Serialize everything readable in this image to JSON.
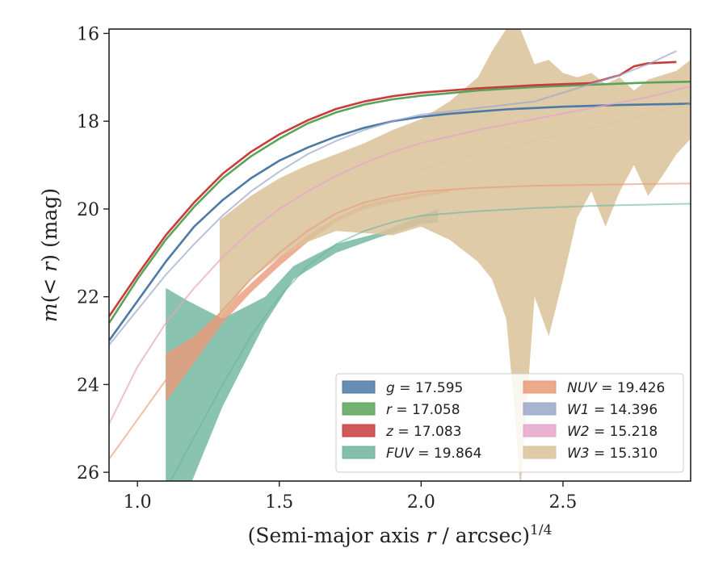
{
  "chart_data": {
    "type": "line",
    "xlabel": "(Semi-major axis r / arcsec)^1/4",
    "ylabel": "m(< r) (mag)",
    "xlim": [
      0.9,
      2.95
    ],
    "ylim": [
      26.2,
      15.9
    ],
    "y_inverted": true,
    "x_ticks": [
      1.0,
      1.5,
      2.0,
      2.5
    ],
    "x_tick_labels": [
      "1.0",
      "1.5",
      "2.0",
      "2.5"
    ],
    "y_ticks": [
      16,
      18,
      20,
      22,
      24,
      26
    ],
    "y_tick_labels": [
      "16",
      "18",
      "20",
      "22",
      "24",
      "26"
    ],
    "grid": false,
    "legend_position": "lower-right",
    "series": [
      {
        "name": "g",
        "legend_value": "17.595",
        "color": "#4c79a6",
        "x": [
          0.9,
          1.0,
          1.1,
          1.2,
          1.3,
          1.4,
          1.5,
          1.6,
          1.7,
          1.8,
          1.9,
          2.0,
          2.1,
          2.2,
          2.3,
          2.5,
          2.7,
          2.95
        ],
        "y": [
          23.0,
          22.1,
          21.2,
          20.4,
          19.8,
          19.3,
          18.9,
          18.6,
          18.35,
          18.15,
          18.0,
          17.9,
          17.83,
          17.78,
          17.73,
          17.67,
          17.63,
          17.6
        ]
      },
      {
        "name": "r",
        "legend_value": "17.058",
        "color": "#5aa35a",
        "x": [
          0.9,
          1.0,
          1.1,
          1.2,
          1.3,
          1.4,
          1.5,
          1.6,
          1.7,
          1.8,
          1.9,
          2.0,
          2.1,
          2.2,
          2.4,
          2.6,
          2.8,
          2.95
        ],
        "y": [
          22.6,
          21.6,
          20.7,
          19.95,
          19.3,
          18.8,
          18.4,
          18.05,
          17.8,
          17.62,
          17.5,
          17.42,
          17.36,
          17.3,
          17.22,
          17.17,
          17.12,
          17.1
        ]
      },
      {
        "name": "z",
        "legend_value": "17.083",
        "color": "#c93c3c",
        "x": [
          0.9,
          1.0,
          1.1,
          1.2,
          1.3,
          1.4,
          1.5,
          1.6,
          1.7,
          1.8,
          1.9,
          2.0,
          2.2,
          2.4,
          2.6,
          2.7,
          2.75,
          2.8,
          2.9
        ],
        "y": [
          22.45,
          21.5,
          20.6,
          19.85,
          19.2,
          18.7,
          18.3,
          17.98,
          17.72,
          17.55,
          17.43,
          17.35,
          17.25,
          17.18,
          17.13,
          16.95,
          16.75,
          16.68,
          16.65
        ]
      },
      {
        "name": "FUV",
        "legend_value": "19.864",
        "color": "#6db59c",
        "x": [
          1.1,
          1.2,
          1.3,
          1.4,
          1.5,
          1.6,
          1.7,
          1.8,
          1.9,
          2.0,
          2.2,
          2.4,
          2.6,
          2.8,
          2.95
        ],
        "y": [
          26.4,
          25.2,
          24.0,
          22.9,
          22.0,
          21.3,
          20.8,
          20.5,
          20.3,
          20.15,
          20.05,
          19.98,
          19.93,
          19.9,
          19.88
        ],
        "band_x": [
          1.1,
          1.18,
          1.3,
          1.45,
          1.55,
          1.7,
          1.85,
          2.0,
          2.06
        ],
        "band_upper": [
          21.8,
          22.1,
          22.5,
          22.0,
          21.3,
          20.8,
          20.55,
          20.15,
          20.0
        ],
        "band_lower": [
          26.4,
          26.4,
          24.5,
          22.6,
          21.6,
          21.0,
          20.65,
          20.35,
          20.3
        ]
      },
      {
        "name": "NUV",
        "legend_value": "19.426",
        "color": "#ea9a78",
        "x": [
          0.9,
          1.0,
          1.1,
          1.2,
          1.3,
          1.4,
          1.5,
          1.6,
          1.7,
          1.8,
          1.9,
          2.0,
          2.2,
          2.4,
          2.6,
          2.8,
          2.95
        ],
        "y": [
          25.7,
          24.8,
          23.9,
          23.1,
          22.3,
          21.6,
          21.0,
          20.5,
          20.1,
          19.85,
          19.7,
          19.6,
          19.52,
          19.47,
          19.45,
          19.43,
          19.42
        ],
        "band_x": [
          1.1,
          1.2,
          1.3,
          1.4,
          1.5,
          1.6,
          1.7,
          1.8,
          1.9,
          2.0,
          2.1
        ],
        "band_upper": [
          23.3,
          22.9,
          22.3,
          21.7,
          21.1,
          20.6,
          20.2,
          19.9,
          19.75,
          19.65,
          19.55
        ],
        "band_lower": [
          24.4,
          23.5,
          22.6,
          21.9,
          21.3,
          20.75,
          20.3,
          20.0,
          19.85,
          19.72,
          19.62
        ]
      },
      {
        "name": "W1",
        "legend_value": "14.396",
        "color": "#9aa7c9",
        "x": [
          0.9,
          1.0,
          1.1,
          1.2,
          1.3,
          1.4,
          1.5,
          1.6,
          1.7,
          1.8,
          1.9,
          2.0,
          2.2,
          2.4,
          2.5,
          2.6,
          2.7,
          2.8,
          2.9
        ],
        "y": [
          23.1,
          22.3,
          21.5,
          20.8,
          20.15,
          19.6,
          19.15,
          18.75,
          18.45,
          18.2,
          18.0,
          17.85,
          17.7,
          17.55,
          17.35,
          17.15,
          16.95,
          16.7,
          16.4
        ]
      },
      {
        "name": "W2",
        "legend_value": "15.218",
        "color": "#e5a3ca",
        "x": [
          0.9,
          1.0,
          1.1,
          1.2,
          1.3,
          1.4,
          1.5,
          1.6,
          1.7,
          1.8,
          1.9,
          2.0,
          2.2,
          2.4,
          2.6,
          2.8,
          2.95
        ],
        "y": [
          24.9,
          23.6,
          22.6,
          21.8,
          21.1,
          20.5,
          20.0,
          19.6,
          19.25,
          18.95,
          18.7,
          18.5,
          18.2,
          17.95,
          17.7,
          17.45,
          17.2
        ]
      },
      {
        "name": "W3",
        "legend_value": "15.310",
        "color": "#dbc29a",
        "x": [
          1.3,
          1.5,
          1.7,
          1.9,
          2.1,
          2.3,
          2.5,
          2.7,
          2.95
        ],
        "y": [
          21.4,
          20.4,
          19.8,
          19.3,
          18.9,
          18.6,
          18.3,
          18.0,
          17.6
        ],
        "band_x": [
          1.29,
          1.4,
          1.5,
          1.6,
          1.7,
          1.8,
          1.9,
          2.0,
          2.1,
          2.2,
          2.25,
          2.3,
          2.33,
          2.35,
          2.4,
          2.45,
          2.5,
          2.55,
          2.6,
          2.65,
          2.7,
          2.75,
          2.8,
          2.85,
          2.9,
          2.95
        ],
        "band_upper": [
          20.25,
          19.7,
          19.3,
          19.0,
          18.75,
          18.5,
          18.2,
          17.95,
          17.55,
          17.0,
          16.4,
          15.9,
          15.9,
          15.9,
          16.7,
          16.6,
          16.9,
          17.0,
          16.9,
          17.15,
          17.0,
          17.3,
          17.05,
          16.95,
          16.85,
          16.6
        ],
        "band_lower": [
          22.5,
          21.6,
          21.1,
          20.75,
          20.5,
          20.55,
          20.6,
          20.4,
          20.7,
          21.2,
          21.6,
          22.5,
          24.6,
          26.4,
          22.0,
          22.9,
          21.6,
          20.2,
          19.6,
          20.4,
          19.6,
          19.0,
          19.7,
          19.25,
          18.75,
          18.4
        ]
      }
    ]
  },
  "legend": {
    "col1": [
      {
        "name": "g",
        "value": "17.595",
        "color": "#4c79a6"
      },
      {
        "name": "r",
        "value": "17.058",
        "color": "#5aa35a"
      },
      {
        "name": "z",
        "value": "17.083",
        "color": "#c93c3c"
      },
      {
        "name": "FUV",
        "value": "19.864",
        "color": "#6db59c"
      }
    ],
    "col2": [
      {
        "name": "NUV",
        "value": "19.426",
        "color": "#ea9a78"
      },
      {
        "name": "W1",
        "value": "14.396",
        "color": "#9aa7c9"
      },
      {
        "name": "W2",
        "value": "15.218",
        "color": "#e5a3ca"
      },
      {
        "name": "W3",
        "value": "15.310",
        "color": "#dbc29a"
      }
    ]
  }
}
